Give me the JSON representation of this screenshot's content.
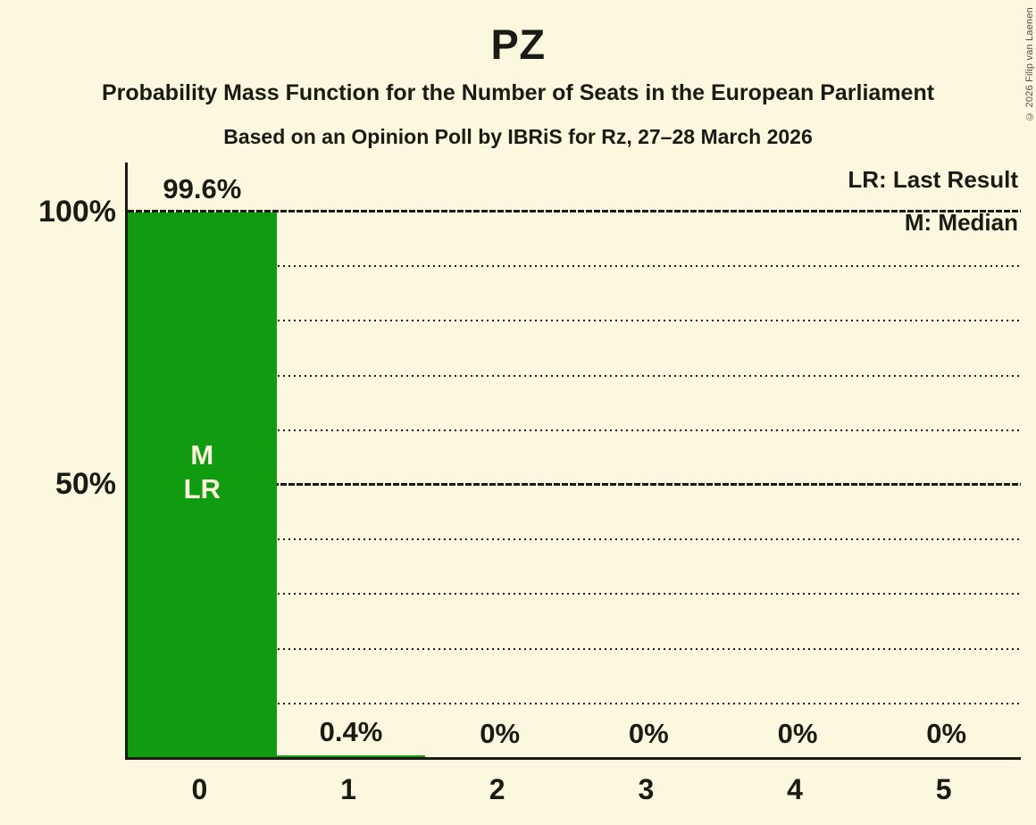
{
  "title": "PZ",
  "subtitle": "Probability Mass Function for the Number of Seats in the European Parliament",
  "poll_info": "Based on an Opinion Poll by IBRiS for Rz, 27–28 March 2026",
  "copyright": "© 2026 Filip van Laenen",
  "legend": {
    "last_result": "LR: Last Result",
    "median": "M: Median"
  },
  "y_axis": {
    "label_100": "100%",
    "label_50": "50%"
  },
  "chart_data": {
    "type": "bar",
    "categories": [
      "0",
      "1",
      "2",
      "3",
      "4",
      "5"
    ],
    "values": [
      99.6,
      0.4,
      0,
      0,
      0,
      0
    ],
    "value_labels": [
      "99.6%",
      "0.4%",
      "0%",
      "0%",
      "0%",
      "0%"
    ],
    "title": "PZ",
    "ylim": [
      0,
      100
    ],
    "gridlines_pct": [
      10,
      20,
      30,
      40,
      50,
      60,
      70,
      80,
      90,
      100
    ],
    "solid_gridlines_pct": [
      50,
      100
    ],
    "grid": true,
    "legend_position": "top-right",
    "bar_annotations": [
      {
        "category_index": 0,
        "labels": [
          "M",
          "LR"
        ]
      }
    ],
    "colors": {
      "bar": "#109B10",
      "background": "#FCF8DF",
      "text": "#1B1B16",
      "bar_label_text": "#FCF8DF"
    }
  }
}
